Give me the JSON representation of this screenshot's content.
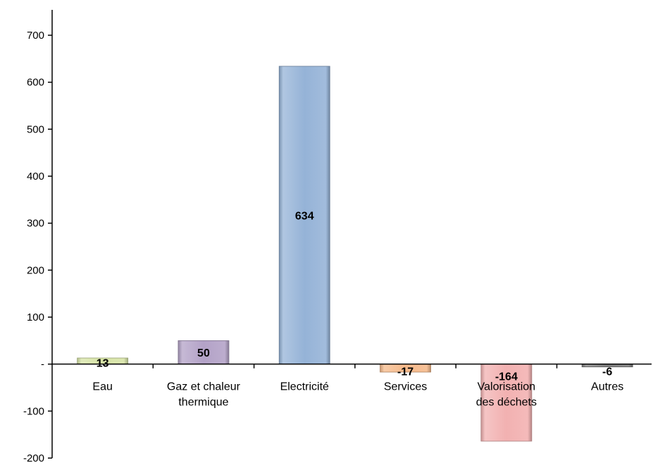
{
  "chart_data": {
    "type": "bar",
    "title": "",
    "xlabel": "",
    "ylabel": "",
    "ylim": [
      -200,
      700
    ],
    "yticks": [
      700,
      600,
      500,
      400,
      300,
      200,
      100,
      0,
      -100,
      -200
    ],
    "ytick_labels": [
      "700",
      "600",
      "500",
      "400",
      "300",
      "200",
      "100",
      "-",
      "-100",
      "-200"
    ],
    "grid": false,
    "legend": "none",
    "categories": [
      {
        "lines": [
          "Eau"
        ]
      },
      {
        "lines": [
          "Gaz et chaleur",
          "thermique"
        ]
      },
      {
        "lines": [
          "Electricité"
        ]
      },
      {
        "lines": [
          "Services"
        ]
      },
      {
        "lines": [
          "Valorisation",
          "des déchets"
        ]
      },
      {
        "lines": [
          "Autres"
        ]
      }
    ],
    "values": [
      13,
      50,
      634,
      -17,
      -164,
      -6
    ],
    "data_labels": [
      "13",
      "50",
      "634",
      "-17",
      "-164",
      "-6"
    ],
    "colors": [
      "#d7e4a6",
      "#b3a2c7",
      "#95b3d7",
      "#f5b98a",
      "#f2b1b1",
      "#7f7f7f"
    ]
  }
}
